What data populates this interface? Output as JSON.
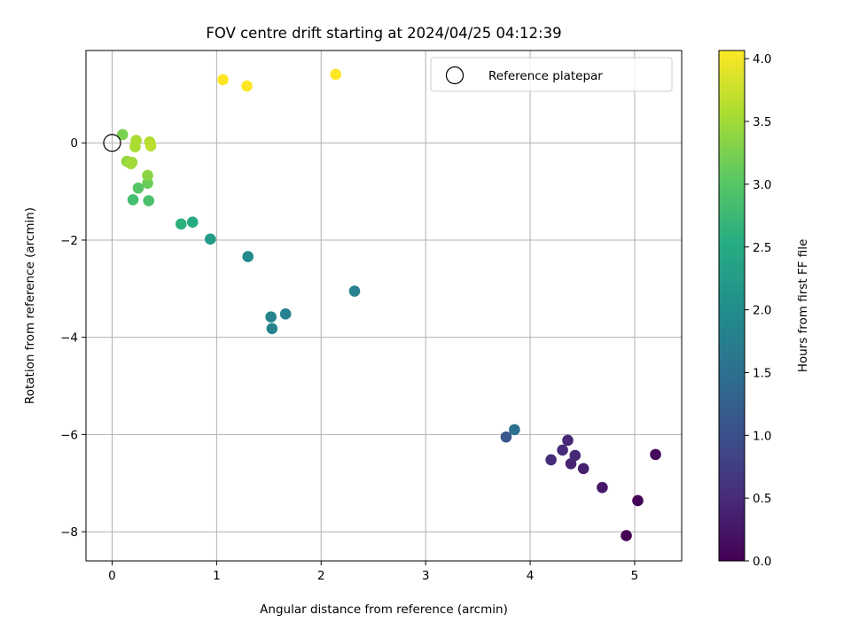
{
  "chart_data": {
    "type": "scatter",
    "title": "FOV centre drift starting at 2024/04/25 04:12:39",
    "xlabel": "Angular distance from reference (arcmin)",
    "ylabel": "Rotation from reference (arcmin)",
    "xlim": [
      -0.25,
      5.45
    ],
    "ylim": [
      -8.6,
      1.9
    ],
    "xticks": [
      0,
      1,
      2,
      3,
      4,
      5
    ],
    "yticks": [
      -8,
      -6,
      -4,
      -2,
      0
    ],
    "grid": true,
    "legend": {
      "position": "top-right",
      "entries": [
        "Reference platepar"
      ]
    },
    "reference_point": {
      "x": 0,
      "y": 0
    },
    "colorbar": {
      "label": "Hours from first FF file",
      "range": [
        0.0,
        4.0
      ],
      "ticks": [
        "0.0",
        "0.5",
        "1.0",
        "1.5",
        "2.0",
        "2.5",
        "3.0",
        "3.5",
        "4.0"
      ],
      "colormap": "viridis",
      "colors": [
        "#440154",
        "#472c7a",
        "#3b518b",
        "#2c718e",
        "#21908d",
        "#27ad81",
        "#5cc863",
        "#aadc32",
        "#fde725"
      ]
    },
    "points": [
      {
        "x": 4.92,
        "y": -8.08,
        "c": 0.0
      },
      {
        "x": 5.03,
        "y": -7.36,
        "c": 0.05
      },
      {
        "x": 5.2,
        "y": -6.41,
        "c": 0.1
      },
      {
        "x": 4.69,
        "y": -7.09,
        "c": 0.25
      },
      {
        "x": 4.51,
        "y": -6.7,
        "c": 0.35
      },
      {
        "x": 4.39,
        "y": -6.6,
        "c": 0.4
      },
      {
        "x": 4.43,
        "y": -6.43,
        "c": 0.45
      },
      {
        "x": 4.31,
        "y": -6.32,
        "c": 0.5
      },
      {
        "x": 4.36,
        "y": -6.12,
        "c": 0.45
      },
      {
        "x": 4.2,
        "y": -6.52,
        "c": 0.5
      },
      {
        "x": 3.77,
        "y": -6.05,
        "c": 1.1
      },
      {
        "x": 3.85,
        "y": -5.9,
        "c": 1.5
      },
      {
        "x": 2.32,
        "y": -3.05,
        "c": 1.75
      },
      {
        "x": 1.66,
        "y": -3.52,
        "c": 1.75
      },
      {
        "x": 1.52,
        "y": -3.58,
        "c": 1.8
      },
      {
        "x": 1.53,
        "y": -3.82,
        "c": 1.8
      },
      {
        "x": 1.3,
        "y": -2.34,
        "c": 1.9
      },
      {
        "x": 0.94,
        "y": -1.98,
        "c": 2.2
      },
      {
        "x": 0.77,
        "y": -1.63,
        "c": 2.45
      },
      {
        "x": 0.66,
        "y": -1.67,
        "c": 2.55
      },
      {
        "x": 0.2,
        "y": -1.17,
        "c": 2.8
      },
      {
        "x": 0.35,
        "y": -1.19,
        "c": 2.85
      },
      {
        "x": 0.25,
        "y": -0.93,
        "c": 2.95
      },
      {
        "x": 0.34,
        "y": -0.83,
        "c": 3.1
      },
      {
        "x": 0.34,
        "y": -0.67,
        "c": 3.3
      },
      {
        "x": 0.14,
        "y": -0.38,
        "c": 3.35
      },
      {
        "x": 0.19,
        "y": -0.4,
        "c": 3.4
      },
      {
        "x": 0.18,
        "y": -0.43,
        "c": 3.45
      },
      {
        "x": 0.1,
        "y": 0.17,
        "c": 3.2
      },
      {
        "x": 0.23,
        "y": 0.05,
        "c": 3.5
      },
      {
        "x": 0.22,
        "y": -0.08,
        "c": 3.5
      },
      {
        "x": 0.36,
        "y": 0.02,
        "c": 3.55
      },
      {
        "x": 0.37,
        "y": -0.06,
        "c": 3.6
      },
      {
        "x": 1.06,
        "y": 1.3,
        "c": 4.0
      },
      {
        "x": 1.29,
        "y": 1.17,
        "c": 4.0
      },
      {
        "x": 2.14,
        "y": 1.41,
        "c": 4.05
      }
    ]
  }
}
